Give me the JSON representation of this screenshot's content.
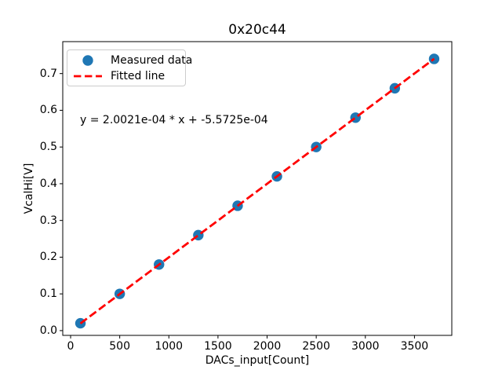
{
  "title": "0x20c44",
  "chart_data": {
    "type": "scatter",
    "title": "0x20c44",
    "xlabel": "DACs_input[Count]",
    "ylabel": "VcalHi[V]",
    "xlim": [
      -80,
      3880
    ],
    "ylim": [
      -0.013,
      0.787
    ],
    "xticks": [
      0,
      500,
      1000,
      1500,
      2000,
      2500,
      3000,
      3500
    ],
    "yticks": [
      0.0,
      0.1,
      0.2,
      0.3,
      0.4,
      0.5,
      0.6,
      0.7
    ],
    "grid": false,
    "legend_position": "upper left",
    "series": [
      {
        "name": "Measured data",
        "type": "scatter",
        "color": "#1f77b4",
        "x": [
          100,
          500,
          900,
          1300,
          1700,
          2100,
          2500,
          2900,
          3300,
          3700
        ],
        "y": [
          0.02,
          0.1,
          0.18,
          0.26,
          0.34,
          0.42,
          0.5,
          0.58,
          0.66,
          0.74
        ]
      },
      {
        "name": "Fitted line",
        "type": "dashed-line",
        "color": "#ff0000",
        "slope": 0.00020021,
        "intercept": -0.00055725,
        "x_range": [
          100,
          3700
        ]
      }
    ],
    "annotation": {
      "text": "y = 2.0021e-04 * x + -5.5725e-04"
    }
  }
}
